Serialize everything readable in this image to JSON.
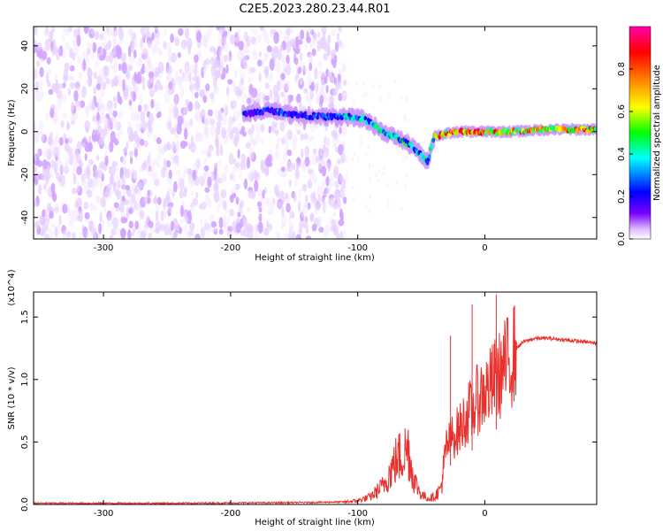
{
  "figure": {
    "title": "C2E5.2023.280.23.44.R01"
  },
  "chart_data": [
    {
      "type": "heatmap",
      "xlabel": "Height of straight line (km)",
      "ylabel": "Frequency (Hz)",
      "xlim": [
        -355,
        88
      ],
      "ylim": [
        -50,
        49
      ],
      "xticks": [
        -300,
        -200,
        -100,
        0
      ],
      "yticks": [
        -40,
        -20,
        0,
        20,
        40
      ],
      "colorbar": {
        "label": "Normalized spectral amplitude",
        "range": [
          0.0,
          1.0
        ],
        "ticks": [
          0.0,
          0.2,
          0.4,
          0.6,
          0.8
        ],
        "colormap": [
          "#ffffff",
          "#d9b3ff",
          "#7a00ff",
          "#0000ff",
          "#00ffff",
          "#00ff00",
          "#ffff00",
          "#ff8000",
          "#ff0000",
          "#ff00aa"
        ]
      },
      "regions": [
        {
          "x": [
            -355,
            -110
          ],
          "y": [
            -50,
            49
          ],
          "amplitude": 0.05,
          "pattern": "scattered noise"
        },
        {
          "x": [
            -190,
            -110
          ],
          "y": [
            0,
            15
          ],
          "amplitude": 0.3,
          "pattern": "signal band"
        },
        {
          "x": [
            -110,
            -40
          ],
          "y": [
            -20,
            10
          ],
          "amplitude": 0.35,
          "pattern": "descending signal"
        },
        {
          "x": [
            -40,
            88
          ],
          "y": [
            -2,
            3
          ],
          "amplitude": 0.7,
          "pattern": "steady carrier"
        }
      ],
      "signal_track": [
        {
          "x": -190,
          "y": 8
        },
        {
          "x": -170,
          "y": 10
        },
        {
          "x": -150,
          "y": 8
        },
        {
          "x": -130,
          "y": 7
        },
        {
          "x": -110,
          "y": 7
        },
        {
          "x": -95,
          "y": 6
        },
        {
          "x": -80,
          "y": 0
        },
        {
          "x": -65,
          "y": -4
        },
        {
          "x": -55,
          "y": -8
        },
        {
          "x": -45,
          "y": -14
        },
        {
          "x": -40,
          "y": -2
        },
        {
          "x": -20,
          "y": 0
        },
        {
          "x": 0,
          "y": 0
        },
        {
          "x": 20,
          "y": 0
        },
        {
          "x": 50,
          "y": 1
        },
        {
          "x": 88,
          "y": 1
        }
      ]
    },
    {
      "type": "line",
      "xlabel": "Height of straight line (km)",
      "ylabel": "SNR (10 * v/v)",
      "y_multiplier": "(x10^4)",
      "xlim": [
        -355,
        88
      ],
      "ylim": [
        0,
        1.7
      ],
      "xticks": [
        -300,
        -200,
        -100,
        0
      ],
      "yticks": [
        0.0,
        0.5,
        1.0,
        1.5
      ],
      "color": "#e8302c",
      "series": [
        {
          "x": [
            -355,
            -300,
            -250,
            -200,
            -150,
            -110,
            -100,
            -90,
            -80,
            -75,
            -70,
            -65,
            -60,
            -58,
            -55,
            -50,
            -45,
            -40,
            -35,
            -32,
            -30,
            -28,
            -25,
            -20,
            -15,
            -12,
            -10,
            -8,
            -5,
            0,
            5,
            8,
            10,
            15,
            20,
            25,
            30,
            40,
            50,
            60,
            70,
            80,
            88
          ],
          "y": [
            0.01,
            0.01,
            0.01,
            0.012,
            0.015,
            0.02,
            0.03,
            0.06,
            0.15,
            0.25,
            0.35,
            0.4,
            0.45,
            0.3,
            0.18,
            0.08,
            0.05,
            0.06,
            0.12,
            0.3,
            0.45,
            0.5,
            0.55,
            0.6,
            0.7,
            0.75,
            0.72,
            0.8,
            0.85,
            0.9,
            0.95,
            1.0,
            1.0,
            1.1,
            1.15,
            1.25,
            1.3,
            1.33,
            1.33,
            1.32,
            1.31,
            1.3,
            1.29
          ]
        }
      ],
      "spikes": [
        {
          "x": -27,
          "y": 1.35
        },
        {
          "x": -10,
          "y": 1.6
        },
        {
          "x": 9,
          "y": 1.68
        }
      ]
    }
  ]
}
